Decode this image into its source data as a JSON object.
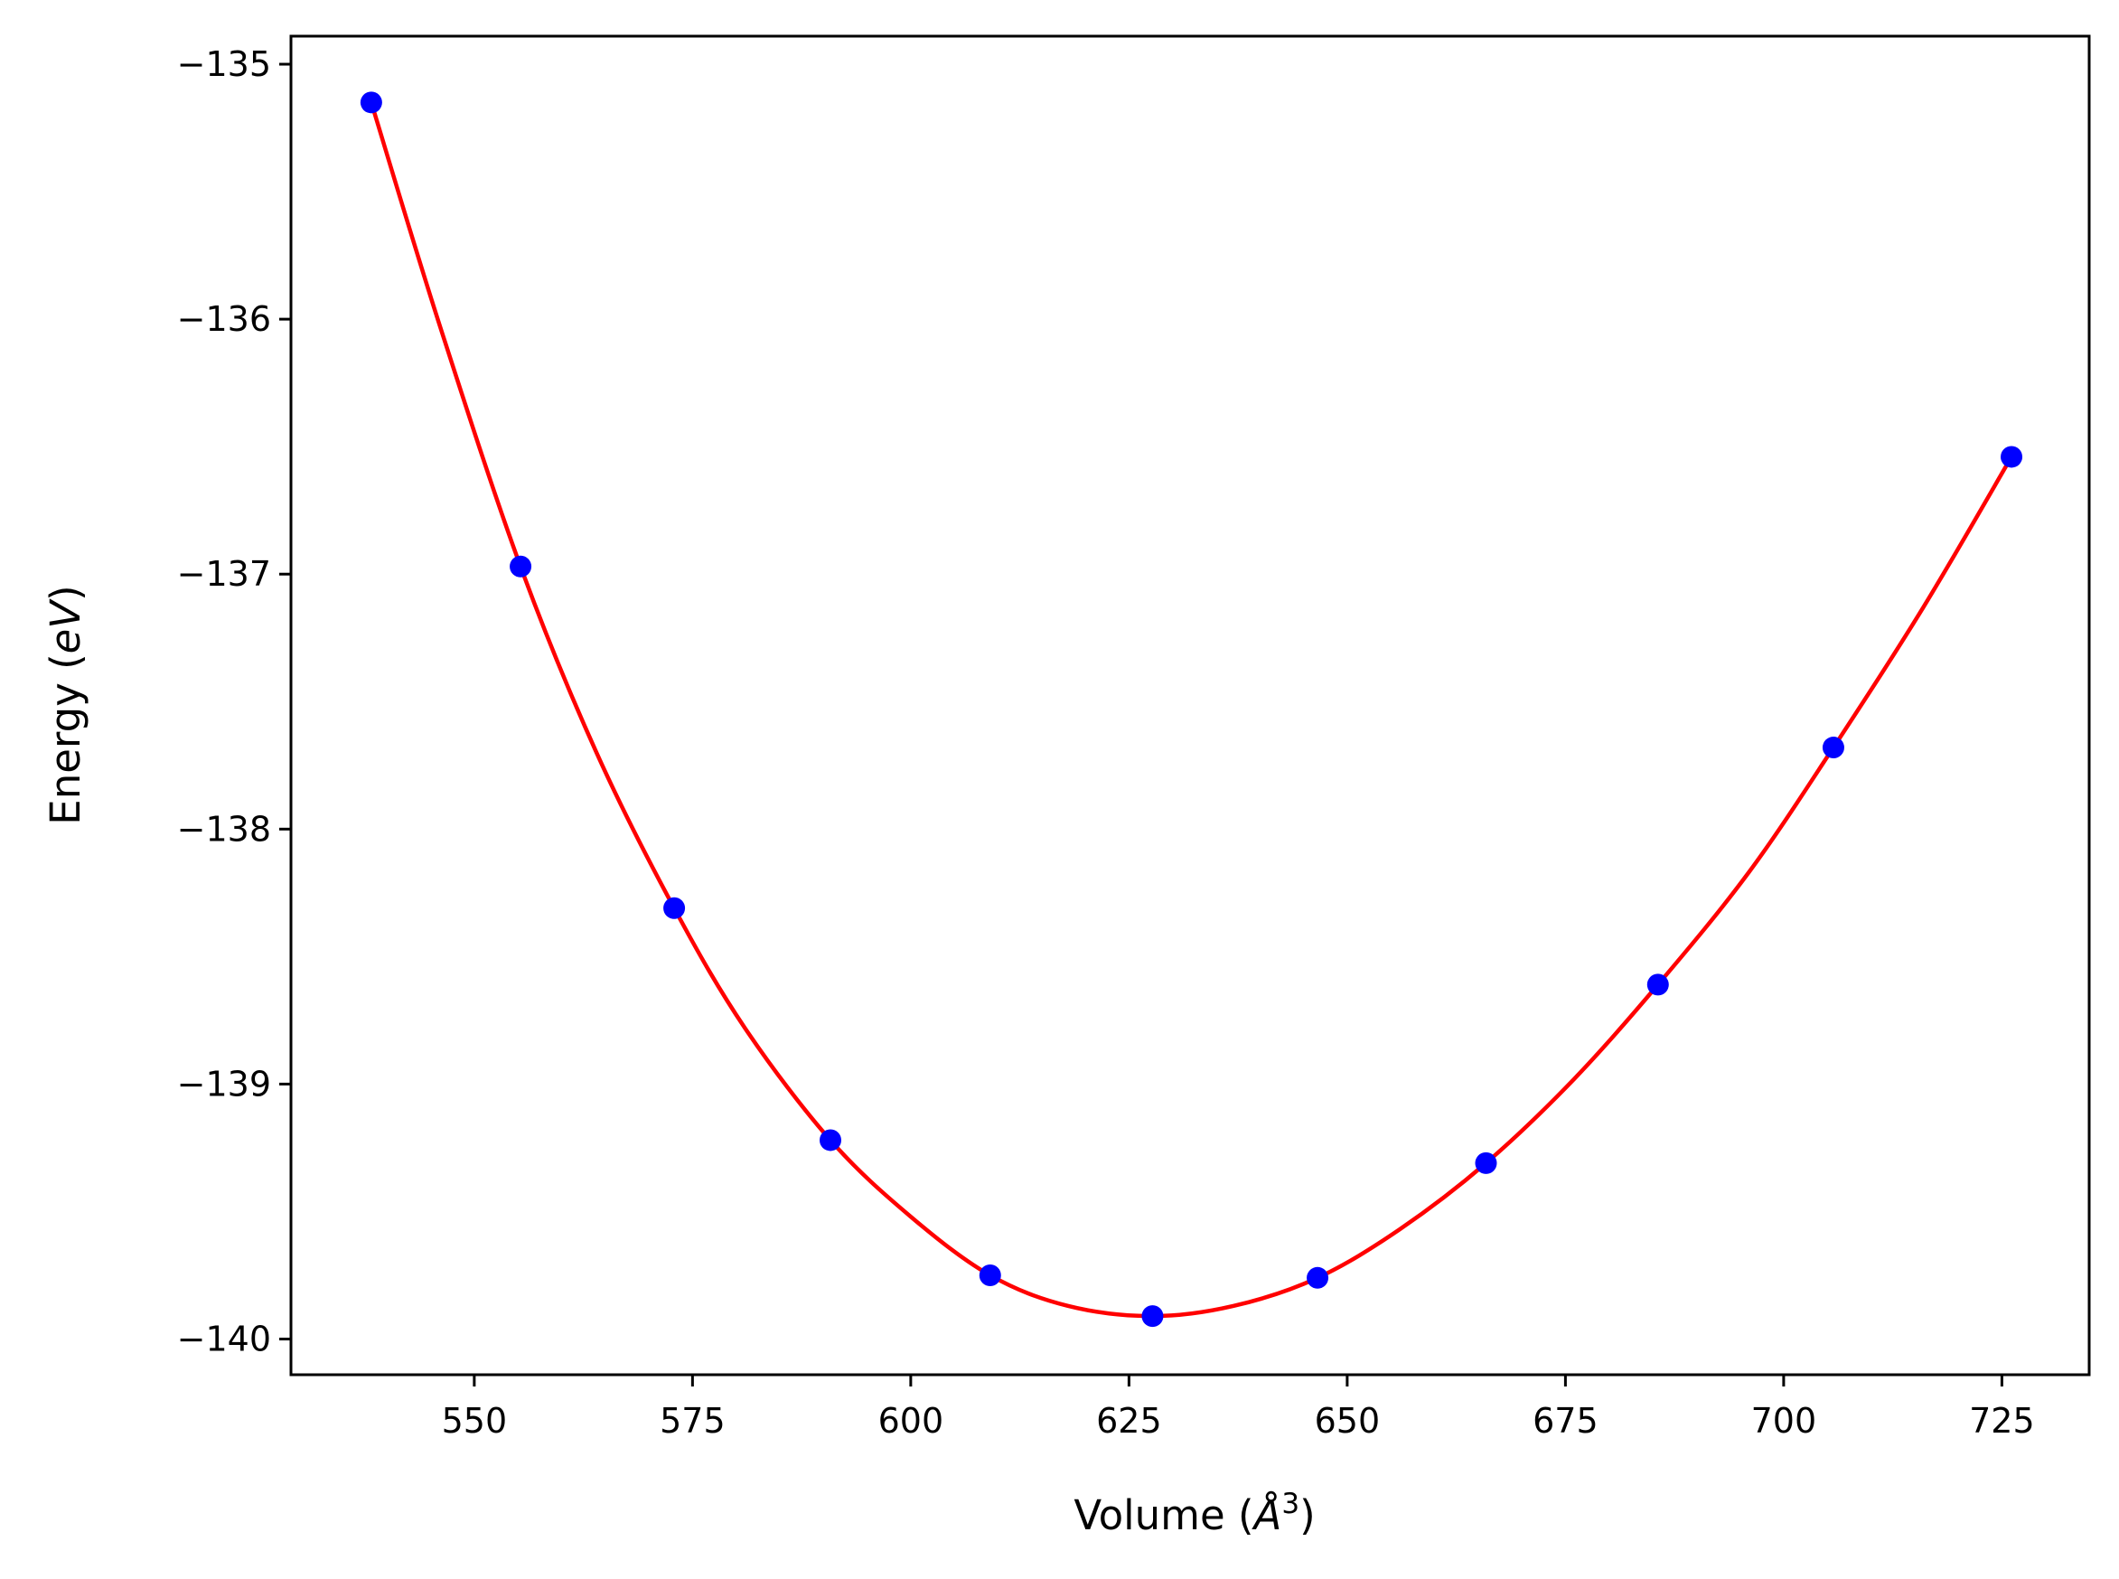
{
  "chart_data": {
    "type": "scatter",
    "xlabel": "Volume (Å³)",
    "xlabel_parts": {
      "main": "Volume (",
      "unit": "Å",
      "sup": "3",
      "close": ")"
    },
    "ylabel": "Energy (eV)",
    "ylabel_parts": {
      "main": "Energy (",
      "unit": "eV",
      "close": ")"
    },
    "xlim": [
      529,
      735
    ],
    "ylim": [
      -140.14,
      -134.89
    ],
    "xticks": [
      550,
      575,
      600,
      625,
      650,
      675,
      700,
      725
    ],
    "xtick_labels": [
      "550",
      "575",
      "600",
      "625",
      "650",
      "675",
      "700",
      "725"
    ],
    "yticks": [
      -135,
      -136,
      -137,
      -138,
      -139,
      -140
    ],
    "ytick_labels": [
      "−135",
      "−136",
      "−137",
      "−138",
      "−139",
      "−140"
    ],
    "grid": false,
    "legend": "none",
    "series": [
      {
        "kind": "points",
        "color": "#0000ff",
        "x": [
          538.2,
          555.3,
          572.9,
          590.8,
          609.1,
          627.7,
          646.6,
          665.9,
          685.6,
          705.7,
          726.1
        ],
        "y": [
          -135.15,
          -136.97,
          -138.31,
          -139.22,
          -139.75,
          -139.91,
          -139.76,
          -139.31,
          -138.61,
          -137.68,
          -136.54
        ]
      },
      {
        "kind": "fit-curve",
        "color": "#ff0000",
        "x": [
          538.2,
          546.0,
          555.3,
          564.0,
          572.9,
          581.0,
          590.8,
          600.0,
          609.1,
          618.0,
          627.7,
          637.0,
          646.6,
          656.0,
          665.9,
          676.0,
          685.6,
          696.0,
          705.7,
          716.0,
          726.1
        ],
        "y": [
          -135.15,
          -136.02,
          -136.97,
          -137.7,
          -138.31,
          -138.78,
          -139.22,
          -139.52,
          -139.75,
          -139.87,
          -139.91,
          -139.87,
          -139.76,
          -139.57,
          -139.31,
          -138.98,
          -138.61,
          -138.17,
          -137.68,
          -137.13,
          -136.54
        ]
      }
    ]
  }
}
